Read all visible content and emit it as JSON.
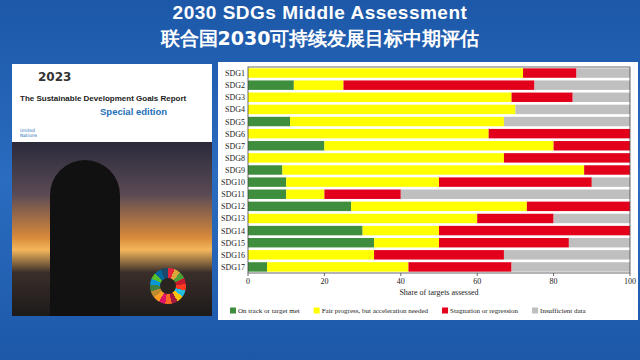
{
  "slide": {
    "title": "2030 SDGs Middle Assessment",
    "subtitle": "联合国2030可持续发展目标中期评估",
    "cover": {
      "year": "2023",
      "title": "The Sustainable Development Goals Report",
      "edition": "Special edition",
      "organization": "United Nations"
    }
  },
  "chart_data": {
    "type": "bar",
    "orientation": "horizontal",
    "stacked": true,
    "x_label": "Share of targets assessed",
    "categories": [
      "SDG1",
      "SDG2",
      "SDG3",
      "SDG4",
      "SDG5",
      "SDG6",
      "SDG7",
      "SDG8",
      "SDG9",
      "SDG10",
      "SDG11",
      "SDG12",
      "SDG13",
      "SDG14",
      "SDG15",
      "SDG16",
      "SDG17"
    ],
    "series": [
      {
        "name": "On track or target met",
        "color": "#3e8e3e",
        "values": [
          0,
          12,
          0,
          0,
          11,
          0,
          20,
          0,
          9,
          10,
          10,
          27,
          0,
          30,
          33,
          0,
          5
        ]
      },
      {
        "name": "Fair progress, but acceleration needed",
        "color": "#ffff00",
        "values": [
          72,
          13,
          69,
          70,
          56,
          63,
          60,
          67,
          79,
          40,
          10,
          46,
          60,
          20,
          17,
          33,
          37
        ]
      },
      {
        "name": "Stagnation or regression",
        "color": "#e3001b",
        "values": [
          14,
          50,
          16,
          0,
          0,
          37,
          20,
          33,
          12,
          40,
          20,
          27,
          20,
          50,
          34,
          34,
          27
        ]
      },
      {
        "name": "Insufficient data",
        "color": "#bfbfbf",
        "values": [
          14,
          25,
          15,
          30,
          33,
          0,
          0,
          0,
          0,
          10,
          60,
          0,
          20,
          0,
          16,
          33,
          31
        ]
      }
    ],
    "xlim": [
      0,
      100
    ],
    "xticks": [
      0,
      20,
      40,
      60,
      80,
      100
    ],
    "grid": false,
    "legend": "bottom"
  }
}
